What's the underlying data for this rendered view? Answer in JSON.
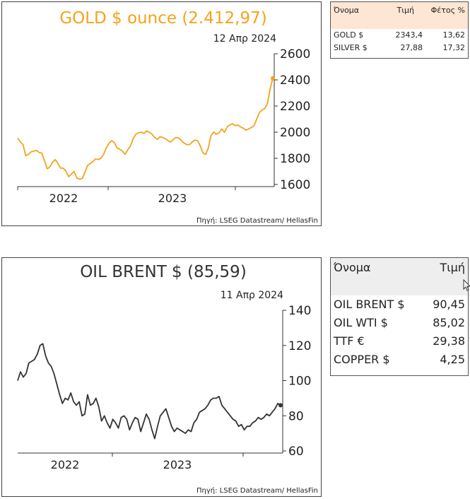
{
  "charts": {
    "gold": {
      "title": "GOLD $ ounce (2.412,97)",
      "date": "12 Απρ 2024",
      "source": "Πηγή: LSEG Datastream/ HellasFin"
    },
    "oil": {
      "title": "OIL BRENT $ (85,59)",
      "date": "11 Απρ 2024",
      "source": "Πηγή: LSEG Datastream/ HellasFin"
    }
  },
  "chart_data": [
    {
      "type": "line",
      "title": "GOLD $ ounce (2.412,97)",
      "ylim": [
        1600,
        2600
      ],
      "yticks": [
        1600,
        1800,
        2000,
        2200,
        2400,
        2600
      ],
      "xticks": [
        "2022",
        "2023"
      ],
      "xlabel": "",
      "ylabel": "",
      "grid": false,
      "color": "#f5a31a",
      "series": [
        {
          "values": [
            1955,
            1925,
            1905,
            1820,
            1830,
            1850,
            1855,
            1860,
            1845,
            1840,
            1780,
            1720,
            1735,
            1770,
            1790,
            1760,
            1725,
            1725,
            1700,
            1660,
            1680,
            1700,
            1650,
            1640,
            1645,
            1690,
            1745,
            1760,
            1775,
            1795,
            1790,
            1800,
            1830,
            1880,
            1915,
            1935,
            1920,
            1880,
            1870,
            1855,
            1830,
            1865,
            1895,
            1950,
            1985,
            1995,
            2000,
            1990,
            2010,
            2000,
            1985,
            1960,
            1945,
            1965,
            1960,
            1950,
            1935,
            1925,
            1945,
            1960,
            1955,
            1935,
            1915,
            1905,
            1905,
            1925,
            1940,
            1935,
            1895,
            1840,
            1830,
            1880,
            1975,
            2000,
            1985,
            1995,
            2025,
            2000,
            2040,
            2055,
            2065,
            2050,
            2055,
            2040,
            2030,
            2015,
            2025,
            2035,
            2050,
            2100,
            2150,
            2170,
            2180,
            2220,
            2330,
            2413
          ]
        }
      ]
    },
    {
      "type": "line",
      "title": "OIL BRENT $ (85,59)",
      "ylim": [
        60,
        140
      ],
      "yticks": [
        60,
        80,
        100,
        120,
        140
      ],
      "xticks": [
        "2022",
        "2023"
      ],
      "xlabel": "",
      "ylabel": "",
      "grid": false,
      "color": "#333333",
      "series": [
        {
          "values": [
            100,
            105,
            102,
            104,
            110,
            111,
            112,
            115,
            120,
            121,
            114,
            110,
            108,
            104,
            98,
            92,
            87,
            90,
            89,
            93,
            88,
            86,
            88,
            80,
            81,
            92,
            86,
            87,
            90,
            85,
            77,
            80,
            76,
            73,
            78,
            76,
            73,
            79,
            80,
            78,
            72,
            76,
            79,
            78,
            71,
            76,
            81,
            78,
            72,
            67,
            74,
            80,
            82,
            84,
            79,
            74,
            71,
            73,
            72,
            71,
            70,
            72,
            71,
            76,
            78,
            82,
            83,
            84,
            86,
            89,
            90,
            90,
            91,
            86,
            84,
            82,
            80,
            78,
            77,
            74,
            75,
            72,
            74,
            74,
            76,
            77,
            79,
            78,
            79,
            81,
            80,
            82,
            84,
            87,
            86
          ]
        }
      ]
    }
  ],
  "gold_table": {
    "headers": [
      "Όνομα",
      "Τιμή",
      "Φέτος %"
    ],
    "rows": [
      [
        "GOLD $",
        "2343,4",
        "13,62"
      ],
      [
        "SILVER $",
        "27,88",
        "17,32"
      ]
    ],
    "header_color": "#fde6d3"
  },
  "oil_table": {
    "headers": [
      "Όνομα",
      "Τιμή"
    ],
    "rows": [
      [
        "OIL BRENT $",
        "90,45"
      ],
      [
        "OIL WTI $",
        "85,02"
      ],
      [
        "TTF €",
        "29,38"
      ],
      [
        "COPPER $",
        "4,25"
      ]
    ],
    "header_color": "#eeeeee"
  }
}
